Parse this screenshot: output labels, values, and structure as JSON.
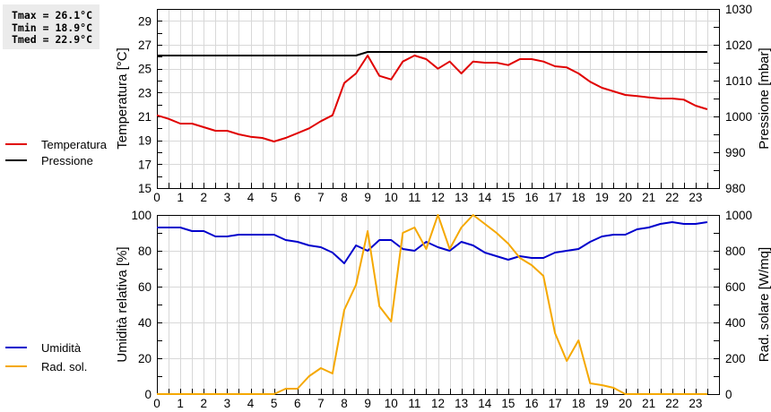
{
  "stats": {
    "tmax": "Tmax = 26.1°C",
    "tmin": "Tmin = 18.9°C",
    "tmed": "Tmed = 22.9°C"
  },
  "legend_top": [
    {
      "label": "Temperatura",
      "color": "#e00000"
    },
    {
      "label": "Pressione",
      "color": "#000000"
    }
  ],
  "legend_bottom": [
    {
      "label": "Umidità",
      "color": "#0000cc"
    },
    {
      "label": "Rad. sol.",
      "color": "#f5a800"
    }
  ],
  "chart_data": [
    {
      "type": "line",
      "title": "",
      "xlabel": "",
      "ylabel": "Temperatura [°C]",
      "ylabel_right": "Pressione [mbar]",
      "xlim": [
        0,
        24
      ],
      "ylim": [
        15,
        30
      ],
      "ylim_right": [
        980,
        1030
      ],
      "x_ticks": [
        0,
        1,
        2,
        3,
        4,
        5,
        6,
        7,
        8,
        9,
        10,
        11,
        12,
        13,
        14,
        15,
        16,
        17,
        18,
        19,
        20,
        21,
        22,
        23
      ],
      "y_ticks": [
        15,
        17,
        19,
        21,
        23,
        25,
        27,
        29
      ],
      "y_ticks_right": [
        980,
        990,
        1000,
        1010,
        1020,
        1030
      ],
      "grid": true,
      "legend_position": "left",
      "x": [
        0,
        0.5,
        1,
        1.5,
        2,
        2.5,
        3,
        3.5,
        4,
        4.5,
        5,
        5.5,
        6,
        6.5,
        7,
        7.5,
        8,
        8.5,
        9,
        9.5,
        10,
        10.5,
        11,
        11.5,
        12,
        12.5,
        13,
        13.5,
        14,
        14.5,
        15,
        15.5,
        16,
        16.5,
        17,
        17.5,
        18,
        18.5,
        19,
        19.5,
        20,
        20.5,
        21,
        21.5,
        22,
        22.5,
        23,
        23.5
      ],
      "series": [
        {
          "name": "Temperatura",
          "axis": "left",
          "color": "#e00000",
          "values": [
            21.1,
            20.8,
            20.4,
            20.4,
            20.1,
            19.8,
            19.8,
            19.5,
            19.3,
            19.2,
            18.9,
            19.2,
            19.6,
            20.0,
            20.6,
            21.1,
            23.8,
            24.6,
            26.1,
            24.4,
            24.1,
            25.6,
            26.1,
            25.8,
            25.0,
            25.6,
            24.6,
            25.6,
            25.5,
            25.5,
            25.3,
            25.8,
            25.8,
            25.6,
            25.2,
            25.1,
            24.6,
            23.9,
            23.4,
            23.1,
            22.8,
            22.7,
            22.6,
            22.5,
            22.5,
            22.4,
            21.9,
            21.6
          ]
        },
        {
          "name": "Pressione",
          "axis": "right",
          "color": "#000000",
          "values": [
            1017,
            1017,
            1017,
            1017,
            1017,
            1017,
            1017,
            1017,
            1017,
            1017,
            1017,
            1017,
            1017,
            1017,
            1017,
            1017,
            1017,
            1017,
            1018,
            1018,
            1018,
            1018,
            1018,
            1018,
            1018,
            1018,
            1018,
            1018,
            1018,
            1018,
            1018,
            1018,
            1018,
            1018,
            1018,
            1018,
            1018,
            1018,
            1018,
            1018,
            1018,
            1018,
            1018,
            1018,
            1018,
            1018,
            1018,
            1018
          ]
        }
      ]
    },
    {
      "type": "line",
      "title": "",
      "xlabel": "",
      "ylabel": "Umidità relativa [%]",
      "ylabel_right": "Rad. solare [W/mq]",
      "xlim": [
        0,
        24
      ],
      "ylim": [
        0,
        100
      ],
      "ylim_right": [
        0,
        1000
      ],
      "x_ticks": [
        0,
        1,
        2,
        3,
        4,
        5,
        6,
        7,
        8,
        9,
        10,
        11,
        12,
        13,
        14,
        15,
        16,
        17,
        18,
        19,
        20,
        21,
        22,
        23
      ],
      "y_ticks": [
        0,
        20,
        40,
        60,
        80,
        100
      ],
      "y_ticks_right": [
        0,
        200,
        400,
        600,
        800,
        1000
      ],
      "grid": true,
      "legend_position": "left",
      "x": [
        0,
        0.5,
        1,
        1.5,
        2,
        2.5,
        3,
        3.5,
        4,
        4.5,
        5,
        5.5,
        6,
        6.5,
        7,
        7.5,
        8,
        8.5,
        9,
        9.5,
        10,
        10.5,
        11,
        11.5,
        12,
        12.5,
        13,
        13.5,
        14,
        14.5,
        15,
        15.5,
        16,
        16.5,
        17,
        17.5,
        18,
        18.5,
        19,
        19.5,
        20,
        20.5,
        21,
        21.5,
        22,
        22.5,
        23,
        23.5
      ],
      "series": [
        {
          "name": "Umidità",
          "axis": "left",
          "color": "#0000cc",
          "values": [
            93,
            93,
            93,
            91,
            91,
            88,
            88,
            89,
            89,
            89,
            89,
            86,
            85,
            83,
            82,
            79,
            73,
            83,
            80,
            86,
            86,
            81,
            80,
            85,
            82,
            80,
            85,
            83,
            79,
            77,
            75,
            77,
            76,
            76,
            79,
            80,
            81,
            85,
            88,
            89,
            89,
            92,
            93,
            95,
            96,
            95,
            95,
            96
          ]
        },
        {
          "name": "Rad. sol.",
          "axis": "right",
          "color": "#f5a800",
          "values": [
            0,
            0,
            0,
            0,
            0,
            0,
            0,
            0,
            0,
            0,
            0,
            30,
            30,
            100,
            145,
            115,
            470,
            610,
            910,
            490,
            405,
            900,
            930,
            810,
            1000,
            810,
            930,
            1000,
            950,
            900,
            840,
            760,
            720,
            660,
            340,
            185,
            300,
            60,
            50,
            35,
            0,
            0,
            0,
            0,
            0,
            0,
            0,
            0
          ]
        }
      ]
    }
  ]
}
